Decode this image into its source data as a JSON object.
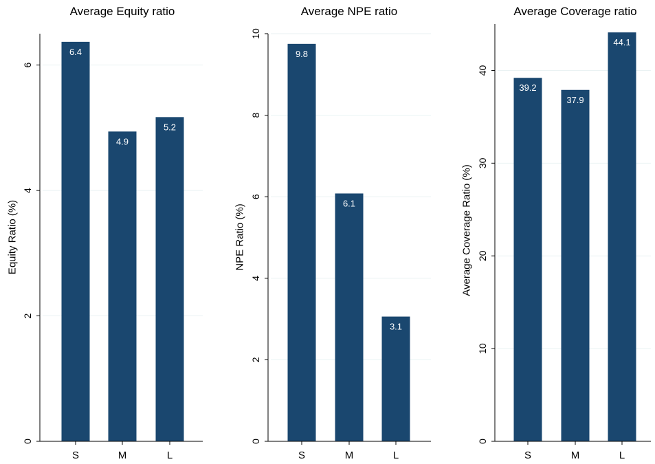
{
  "chart_data": [
    {
      "type": "bar",
      "title": "Average Equity ratio",
      "ylabel": "Equity Ratio (%)",
      "xlabel": "",
      "categories": [
        "S",
        "M",
        "L"
      ],
      "values": [
        6.37,
        4.94,
        5.17
      ],
      "data_labels": [
        "6.4",
        "4.9",
        "5.2"
      ],
      "ylim": [
        0,
        6.5
      ],
      "yticks": [
        0,
        2,
        4,
        6
      ],
      "ytick_labels": [
        "0",
        "2",
        "4",
        "6"
      ],
      "grid": true,
      "bar_color": "#1a476f"
    },
    {
      "type": "bar",
      "title": "Average NPE ratio",
      "ylabel": "NPE Ratio (%)",
      "xlabel": "",
      "categories": [
        "S",
        "M",
        "L"
      ],
      "values": [
        9.75,
        6.08,
        3.06
      ],
      "data_labels": [
        "9.8",
        "6.1",
        "3.1"
      ],
      "ylim": [
        0,
        10
      ],
      "yticks": [
        0,
        2,
        4,
        6,
        8,
        10
      ],
      "ytick_labels": [
        "0",
        "2",
        "4",
        "6",
        "8",
        "10"
      ],
      "grid": true,
      "bar_color": "#1a476f"
    },
    {
      "type": "bar",
      "title": "Average Coverage ratio",
      "ylabel": "Average Coverage Ratio (%)",
      "xlabel": "",
      "categories": [
        "S",
        "M",
        "L"
      ],
      "values": [
        39.2,
        37.9,
        44.1
      ],
      "data_labels": [
        "39.2",
        "37.9",
        "44.1"
      ],
      "ylim": [
        0,
        45
      ],
      "yticks": [
        0,
        10,
        20,
        30,
        40
      ],
      "ytick_labels": [
        "0",
        "10",
        "20",
        "30",
        "40"
      ],
      "grid": true,
      "bar_color": "#1a476f"
    }
  ]
}
